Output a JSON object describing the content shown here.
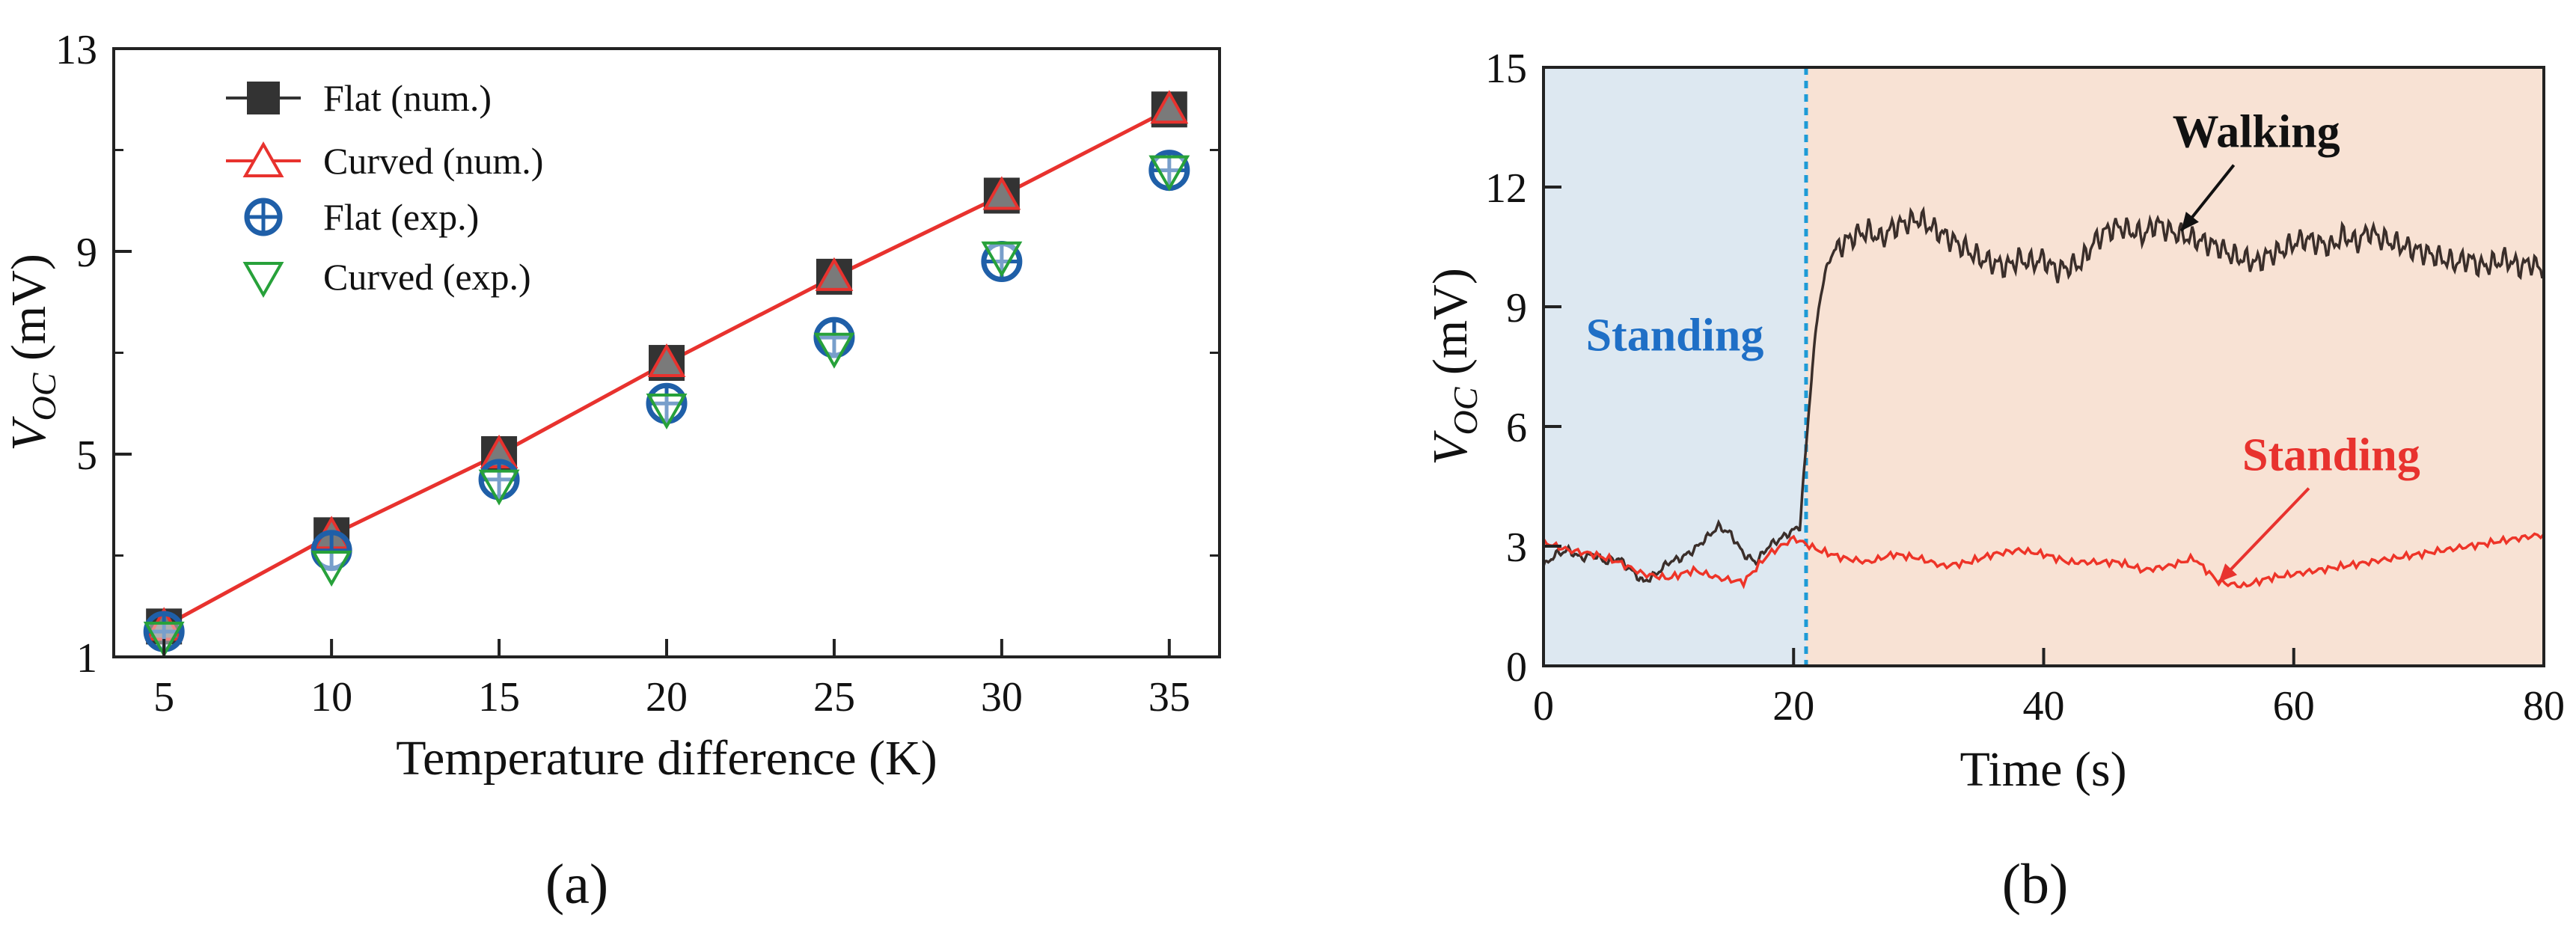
{
  "chart_data": [
    {
      "id": "a",
      "type": "scatter",
      "panel_label": "(a)",
      "xlabel": "Temperature difference (K)",
      "ylabel_main": "V",
      "ylabel_sub": "OC",
      "ylabel_unit": " (mV)",
      "xlim": [
        3.5,
        36.5
      ],
      "ylim": [
        1,
        13
      ],
      "xticks": [
        5,
        10,
        15,
        20,
        25,
        30,
        35
      ],
      "yticks": [
        1,
        5,
        9,
        13
      ],
      "yminor": [
        3,
        7,
        11
      ],
      "legend_position": "top-left",
      "colors": {
        "black": "#333333",
        "red": "#e8322e",
        "blue": "#1f5fa8",
        "green": "#27a13a"
      },
      "series": [
        {
          "name": "Flat (num.)",
          "marker": "square",
          "line": true,
          "color": "#333333",
          "x": [
            5,
            10,
            15,
            20,
            25,
            30,
            35
          ],
          "y": [
            1.6,
            3.4,
            5.0,
            6.8,
            8.5,
            10.1,
            11.8
          ]
        },
        {
          "name": "Curved (num.)",
          "marker": "triangle-up",
          "line": true,
          "color": "#e8322e",
          "x": [
            5,
            10,
            15,
            20,
            25,
            30,
            35
          ],
          "y": [
            1.6,
            3.4,
            5.0,
            6.8,
            8.5,
            10.1,
            11.8
          ]
        },
        {
          "name": "Flat (exp.)",
          "marker": "circle-plus",
          "line": false,
          "color": "#1f5fa8",
          "x": [
            5,
            10,
            15,
            20,
            25,
            30,
            35
          ],
          "y": [
            1.5,
            3.1,
            4.5,
            6.0,
            7.3,
            8.8,
            10.6
          ]
        },
        {
          "name": "Curved (exp.)",
          "marker": "triangle-down",
          "line": false,
          "color": "#27a13a",
          "x": [
            5,
            10,
            15,
            20,
            25,
            30,
            35
          ],
          "y": [
            1.4,
            2.8,
            4.4,
            5.9,
            7.1,
            8.9,
            10.6
          ]
        }
      ]
    },
    {
      "id": "b",
      "type": "line",
      "panel_label": "(b)",
      "xlabel": "Time (s)",
      "ylabel_main": "V",
      "ylabel_sub": "OC",
      "ylabel_unit": " (mV)",
      "xlim": [
        0,
        80
      ],
      "ylim": [
        0,
        15
      ],
      "xticks": [
        0,
        20,
        40,
        60,
        80
      ],
      "yticks": [
        0,
        3,
        6,
        9,
        12,
        15
      ],
      "divider_x": 21,
      "regions": [
        {
          "name": "standing-phase",
          "from": 0,
          "to": 21,
          "color": "#dde8f1"
        },
        {
          "name": "walking-phase",
          "from": 21,
          "to": 80,
          "color": "#f8e2d4"
        }
      ],
      "divider_color": "#1e9bd6",
      "annotations": [
        {
          "text": "Walking",
          "color": "#111111",
          "x": 57,
          "y": 13.0,
          "arrow_to": [
            51,
            10.9
          ]
        },
        {
          "text": "Standing",
          "color": "#1f6fc6",
          "x": 10.5,
          "y": 7.9
        },
        {
          "text": "Standing",
          "color": "#e8322e",
          "x": 63,
          "y": 4.9,
          "arrow_to": [
            54,
            2.1
          ]
        }
      ],
      "series": [
        {
          "name": "Walking",
          "color": "#3a2e2a",
          "x": [
            0,
            1,
            2,
            3,
            4,
            5,
            6,
            7,
            8,
            9,
            10,
            11,
            12,
            13,
            14,
            15,
            16,
            17,
            18,
            19,
            20,
            20.5,
            21,
            21.5,
            22,
            22.5,
            23,
            24,
            25,
            26,
            27,
            28,
            29,
            30,
            31,
            32,
            33,
            34,
            35,
            36,
            37,
            38,
            39,
            40,
            41,
            42,
            43,
            44,
            45,
            46,
            47,
            48,
            49,
            50,
            51,
            52,
            53,
            54,
            55,
            56,
            57,
            58,
            59,
            60,
            61,
            62,
            63,
            64,
            65,
            66,
            67,
            68,
            69,
            70,
            71,
            72,
            73,
            74,
            75,
            76,
            77,
            78,
            79,
            80
          ],
          "y": [
            2.5,
            2.8,
            2.9,
            2.7,
            2.8,
            2.6,
            2.7,
            2.4,
            2.1,
            2.3,
            2.6,
            2.7,
            2.9,
            3.2,
            3.5,
            3.3,
            2.8,
            2.6,
            3.0,
            3.2,
            3.4,
            3.5,
            5.5,
            7.5,
            9.0,
            9.8,
            10.3,
            10.6,
            10.8,
            10.9,
            10.7,
            11.0,
            11.1,
            11.2,
            11.0,
            10.8,
            10.6,
            10.4,
            10.2,
            10.1,
            10.0,
            10.2,
            10.1,
            10.2,
            9.9,
            10.0,
            10.1,
            10.6,
            10.9,
            11.0,
            10.9,
            10.8,
            11.1,
            10.9,
            10.8,
            10.7,
            10.6,
            10.5,
            10.3,
            10.2,
            10.1,
            10.3,
            10.4,
            10.6,
            10.7,
            10.6,
            10.5,
            10.8,
            10.6,
            10.9,
            10.7,
            10.6,
            10.5,
            10.4,
            10.3,
            10.2,
            10.1,
            10.2,
            10.0,
            10.1,
            10.2,
            10.0,
            10.1,
            9.9
          ]
        },
        {
          "name": "Standing",
          "color": "#ee3428",
          "x": [
            0,
            2,
            4,
            6,
            8,
            10,
            12,
            14,
            16,
            18,
            20,
            22,
            24,
            26,
            28,
            30,
            32,
            34,
            36,
            38,
            40,
            42,
            44,
            46,
            48,
            50,
            52,
            54,
            56,
            58,
            60,
            62,
            64,
            66,
            68,
            70,
            72,
            74,
            76,
            78,
            80
          ],
          "y": [
            3.1,
            2.9,
            2.8,
            2.6,
            2.3,
            2.2,
            2.4,
            2.2,
            2.1,
            2.8,
            3.2,
            2.9,
            2.7,
            2.6,
            2.8,
            2.7,
            2.5,
            2.6,
            2.8,
            2.9,
            2.8,
            2.6,
            2.6,
            2.6,
            2.4,
            2.5,
            2.7,
            2.1,
            2.0,
            2.2,
            2.3,
            2.4,
            2.5,
            2.6,
            2.7,
            2.8,
            2.9,
            3.0,
            3.1,
            3.2,
            3.3
          ]
        }
      ]
    }
  ]
}
